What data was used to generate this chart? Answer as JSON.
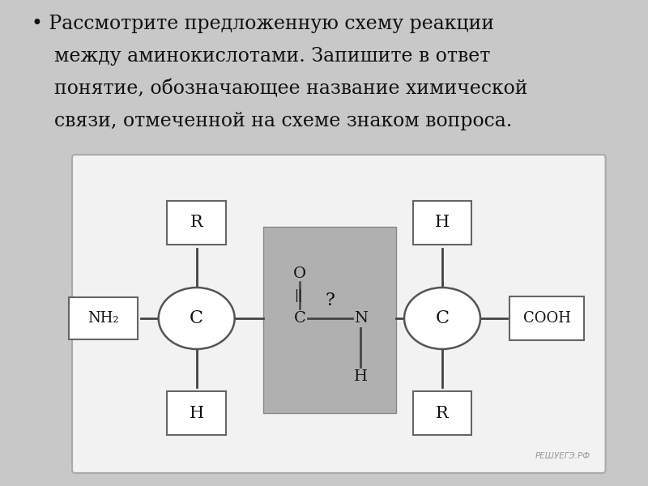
{
  "bg_color": "#c8c8c8",
  "diagram_bg": "#f0eeee",
  "gray_box_color": "#b0b0b0",
  "box_fill": "#ffffff",
  "box_edge": "#666666",
  "ellipse_fill": "#ffffff",
  "ellipse_edge": "#555555",
  "line_color": "#444444",
  "text_color": "#111111",
  "watermark": "РЕШУЕГЭ.РФ",
  "bullet_line1": "• Рассмотрите предложенную схему реакции",
  "bullet_line2": "между аминокислотами. Запишите в ответ",
  "bullet_line3": "понятие, обозначающее название химической",
  "bullet_line4": "связи, отмеченной на схеме знаком вопроса."
}
